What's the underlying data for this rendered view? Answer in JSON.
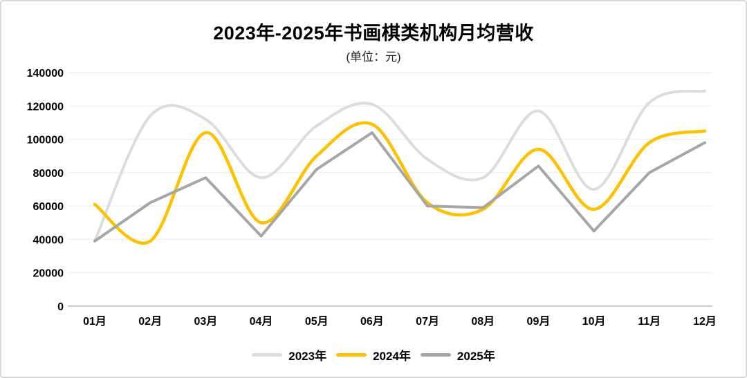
{
  "frame": {
    "background": "#ffffff",
    "border_color": "#d9d9d9"
  },
  "chart_data": {
    "type": "line",
    "title": "2023年-2025年书画棋类机构月均营收",
    "subtitle": "(单位：元)",
    "xlabel": "",
    "ylabel": "",
    "categories": [
      "01月",
      "02月",
      "03月",
      "04月",
      "05月",
      "06月",
      "07月",
      "08月",
      "09月",
      "10月",
      "11月",
      "12月"
    ],
    "series": [
      {
        "name": "2023年",
        "color": "#dcdcdc",
        "smooth": true,
        "values": [
          39000,
          114000,
          112000,
          77000,
          108000,
          121000,
          88000,
          77000,
          117000,
          70000,
          122000,
          129000
        ]
      },
      {
        "name": "2024年",
        "color": "#ffc000",
        "smooth": true,
        "values": [
          61000,
          39000,
          104000,
          50000,
          90000,
          109000,
          62000,
          58000,
          94000,
          58000,
          98000,
          105000
        ]
      },
      {
        "name": "2025年",
        "color": "#a6a6a6",
        "smooth": false,
        "values": [
          39000,
          62000,
          77000,
          42000,
          82000,
          104000,
          60000,
          59000,
          84000,
          45000,
          80000,
          98000
        ]
      }
    ],
    "ylim": [
      0,
      140000
    ],
    "ytick_step": 20000,
    "grid": true,
    "gridline_color": "#f0f0f0",
    "axis_line_color": "#cccccc",
    "legend_position": "bottom"
  }
}
